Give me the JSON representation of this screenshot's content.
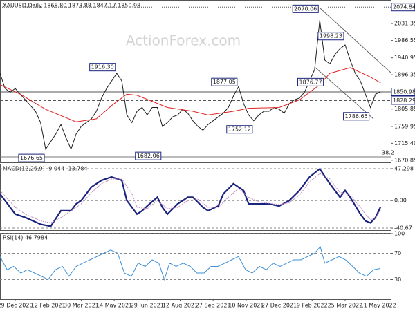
{
  "watermark": "ActionForex.com",
  "chart_data": [
    {
      "type": "line",
      "title": "XAUUSD,Daily  1868.80 1873.88 1847.17 1850.98",
      "xlim": [
        0,
        77
      ],
      "ylim": [
        1665,
        2088
      ],
      "grid": false,
      "yticks": [
        2031.35,
        1986.55,
        1940.95,
        1896.35,
        1805.85,
        1759.95,
        {
          "value": 1715.4,
          "label": "1715.40"
        },
        1670.85
      ],
      "levels": [
        {
          "value": 2074.84,
          "style": "dotted"
        },
        {
          "value": 1850.98,
          "style": "solid"
        },
        {
          "value": 1828.29,
          "style": "dashed"
        }
      ],
      "note": "38.2",
      "series": [
        {
          "name": "XAUUSD",
          "color": "#1c1c1c",
          "x": [
            0,
            1,
            2,
            3,
            4,
            5,
            6,
            7,
            8,
            9,
            10,
            11,
            12,
            13,
            14,
            15,
            16,
            17,
            18,
            19,
            20,
            21,
            22,
            23,
            24,
            25,
            26,
            27,
            28,
            29,
            30,
            31,
            32,
            33,
            34,
            35,
            36,
            37,
            38,
            39,
            40,
            41,
            42,
            43,
            44,
            45,
            46,
            47,
            48,
            49,
            50,
            51,
            52,
            53,
            54,
            55,
            56,
            57,
            58,
            59,
            60,
            61,
            62,
            63,
            64,
            65,
            66,
            67,
            68,
            69,
            70,
            71,
            72,
            73,
            74,
            75
          ],
          "values": [
            1900,
            1860,
            1850,
            1860,
            1845,
            1830,
            1815,
            1800,
            1770,
            1700,
            1720,
            1740,
            1765,
            1730,
            1700,
            1740,
            1760,
            1770,
            1780,
            1800,
            1835,
            1860,
            1880,
            1900,
            1880,
            1790,
            1770,
            1800,
            1810,
            1790,
            1810,
            1810,
            1760,
            1770,
            1785,
            1790,
            1805,
            1795,
            1775,
            1760,
            1750,
            1765,
            1775,
            1785,
            1795,
            1810,
            1840,
            1865,
            1820,
            1790,
            1775,
            1790,
            1800,
            1800,
            1810,
            1805,
            1795,
            1820,
            1830,
            1835,
            1850,
            1880,
            1910,
            2040,
            1935,
            1925,
            1950,
            1965,
            1975,
            1935,
            1900,
            1880,
            1845,
            1810,
            1845,
            1851
          ]
        },
        {
          "name": "MA",
          "color": "#e02424",
          "x": [
            0,
            4,
            9,
            15,
            19,
            22,
            25,
            27,
            33,
            38,
            41,
            46,
            49,
            55,
            59,
            63,
            65,
            69,
            73,
            75
          ],
          "values": [
            1870,
            1845,
            1805,
            1772,
            1780,
            1815,
            1845,
            1842,
            1810,
            1800,
            1790,
            1800,
            1808,
            1810,
            1830,
            1870,
            1900,
            1915,
            1890,
            1875
          ]
        }
      ],
      "annotations": [
        {
          "label": "1676.65",
          "value": 1676.65,
          "x": 9
        },
        {
          "label": "1916.30",
          "value": 1916.3,
          "x": 23
        },
        {
          "label": "1682.06",
          "value": 1682.06,
          "x": 32
        },
        {
          "label": "1877.05",
          "value": 1877.05,
          "x": 47
        },
        {
          "label": "1752.12",
          "value": 1752.12,
          "x": 50
        },
        {
          "label": "1876.77",
          "value": 1876.77,
          "x": 64
        },
        {
          "label": "2070.06",
          "value": 2070.06,
          "x": 63
        },
        {
          "label": "1998.23",
          "value": 1998.23,
          "x": 68
        },
        {
          "label": "1786.65",
          "value": 1786.65,
          "x": 73
        }
      ]
    },
    {
      "type": "line",
      "title": "MACD(12,26,9) -9.044 -13.784",
      "xlim": [
        0,
        77
      ],
      "ylim": [
        -43.7,
        53.4
      ],
      "grid": true,
      "yticks": [
        47.298,
        {
          "value": 0,
          "label": "0.00"
        },
        -40.67
      ],
      "series": [
        {
          "name": "MACD",
          "color": "#1a237e",
          "x": [
            0,
            3,
            5,
            8,
            10,
            12,
            14,
            15,
            16,
            18,
            20,
            22,
            24,
            25,
            27,
            28,
            29,
            31,
            32,
            33,
            35,
            37,
            38,
            40,
            41,
            43,
            44,
            46,
            48,
            49,
            51,
            53,
            55,
            57,
            59,
            61,
            63,
            65,
            67,
            68,
            69,
            71,
            72,
            73,
            74,
            75
          ],
          "values": [
            10,
            -20,
            -25,
            -35,
            -38,
            -15,
            -15,
            -5,
            0,
            20,
            30,
            35,
            30,
            0,
            -20,
            -15,
            -8,
            5,
            -10,
            -20,
            -5,
            5,
            5,
            -10,
            -15,
            -8,
            10,
            25,
            15,
            -5,
            -5,
            -5,
            -8,
            0,
            15,
            35,
            47,
            25,
            5,
            15,
            5,
            -20,
            -30,
            -33,
            -25,
            -9.044
          ]
        },
        {
          "name": "Signal",
          "color": "#c08ac0",
          "x": [
            0,
            3,
            5,
            8,
            10,
            12,
            14,
            16,
            18,
            20,
            22,
            24,
            26,
            27,
            29,
            31,
            33,
            35,
            37,
            39,
            41,
            43,
            45,
            47,
            49,
            51,
            53,
            55,
            57,
            59,
            61,
            63,
            65,
            67,
            69,
            71,
            72,
            73,
            74,
            75
          ],
          "values": [
            15,
            -10,
            -20,
            -30,
            -33,
            -25,
            -15,
            -5,
            12,
            25,
            32,
            32,
            10,
            -10,
            -12,
            0,
            -12,
            -10,
            0,
            2,
            -10,
            -10,
            5,
            18,
            5,
            -2,
            -4,
            -6,
            -3,
            8,
            28,
            40,
            32,
            12,
            8,
            -10,
            -20,
            -28,
            -26,
            -13.784
          ]
        }
      ]
    },
    {
      "type": "line",
      "title": "RSI(14) 46.7984",
      "xlim": [
        0,
        77
      ],
      "ylim": [
        0,
        100
      ],
      "grid": true,
      "yticks": [
        100,
        70,
        30
      ],
      "xticks": [
        {
          "value": 3,
          "label": "29 Dec 2020"
        },
        {
          "value": 9.5,
          "label": "12 Feb 2021"
        },
        {
          "value": 16,
          "label": "30 Mar 2021"
        },
        {
          "value": 22.5,
          "label": "14 May 2021"
        },
        {
          "value": 29,
          "label": "29 Jun 2021"
        },
        {
          "value": 35.5,
          "label": "12 Aug 2021"
        },
        {
          "value": 42,
          "label": "27 Sep 2021"
        },
        {
          "value": 48.5,
          "label": "10 Nov 2021"
        },
        {
          "value": 55,
          "label": "27 Dec 2021"
        },
        {
          "value": 61.5,
          "label": "9 Feb 2022"
        },
        {
          "value": 68,
          "label": "25 Mar 2022"
        },
        {
          "value": 74.5,
          "label": "11 May 2022"
        }
      ],
      "series": [
        {
          "name": "RSI",
          "color": "#3d8fd6",
          "x": [
            0,
            1.4,
            2.7,
            4.1,
            5.4,
            6.8,
            8.2,
            9.5,
            10.9,
            12.3,
            13.6,
            15,
            16.3,
            17.7,
            19.1,
            20.4,
            21.8,
            23.2,
            24.5,
            25.9,
            27.2,
            28.6,
            30,
            31.3,
            32.4,
            33.4,
            34.7,
            36.1,
            37.5,
            38.8,
            40.2,
            41.6,
            42.9,
            44.3,
            45.6,
            47,
            48.4,
            49.7,
            51.1,
            52.5,
            53.8,
            55.2,
            56.5,
            57.9,
            59.3,
            60.6,
            62,
            63.1,
            64,
            65.4,
            66.8,
            68.1,
            69.5,
            70.8,
            72.2,
            73.6,
            74.9
          ],
          "values": [
            65,
            45,
            50,
            40,
            45,
            40,
            35,
            30,
            45,
            50,
            35,
            50,
            55,
            60,
            65,
            70,
            75,
            70,
            40,
            35,
            55,
            50,
            60,
            55,
            30,
            55,
            50,
            55,
            50,
            40,
            40,
            50,
            50,
            55,
            60,
            65,
            45,
            40,
            50,
            45,
            55,
            50,
            55,
            60,
            60,
            65,
            70,
            80,
            55,
            60,
            65,
            60,
            50,
            40,
            35,
            45,
            46.7984
          ]
        }
      ]
    }
  ]
}
